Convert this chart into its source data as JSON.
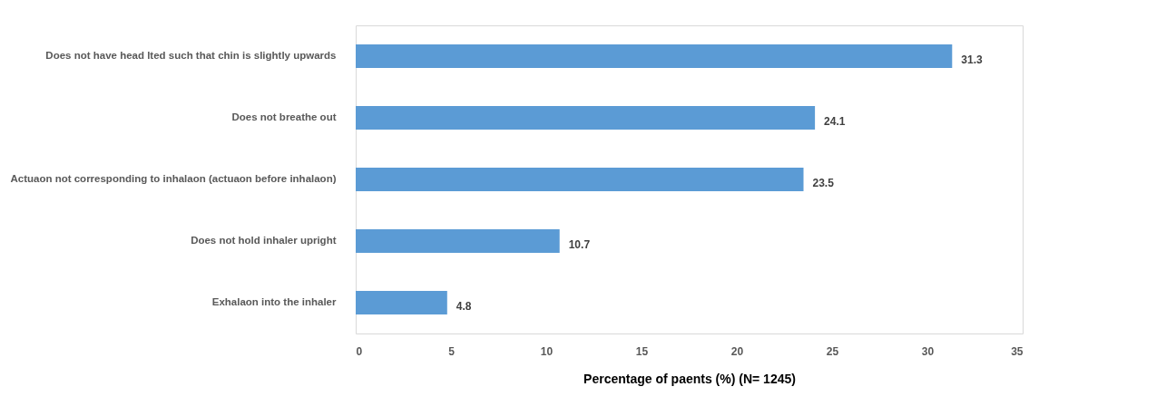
{
  "chart_data": {
    "type": "bar",
    "orientation": "horizontal",
    "xlabel": "Percentage of paents (%) (N= 1245)",
    "categories": [
      "Does not have head lted such that chin is slightly upwards",
      "Does not breathe out",
      "Actuaon not corresponding to inhalaon (actuaon before inhalaon)",
      "Does not hold inhaler upright",
      "Exhalaon into the inhaler"
    ],
    "values": [
      31.3,
      24.1,
      23.5,
      10.7,
      4.8
    ],
    "color": "#5b9bd5",
    "xlim": [
      0,
      35
    ],
    "xticks": [
      0,
      5,
      10,
      15,
      20,
      25,
      30,
      35
    ],
    "grid": false,
    "data_labels": true
  }
}
